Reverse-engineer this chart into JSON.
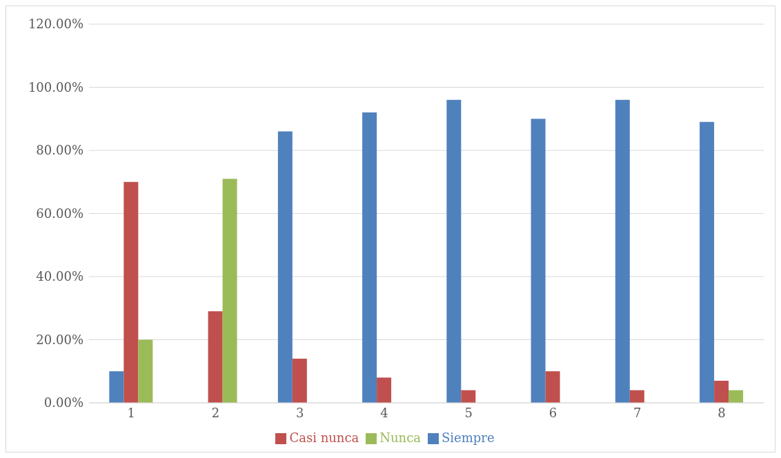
{
  "chart_data": {
    "type": "bar",
    "categories": [
      "1",
      "2",
      "3",
      "4",
      "5",
      "6",
      "7",
      "8"
    ],
    "series": [
      {
        "name": "Siempre",
        "color": "#4f81bd",
        "values": [
          10,
          0,
          86,
          92,
          96,
          90,
          96,
          89
        ]
      },
      {
        "name": "Casi nunca",
        "color": "#c0504d",
        "values": [
          70,
          29,
          14,
          8,
          4,
          10,
          4,
          7
        ]
      },
      {
        "name": "Nunca",
        "color": "#9bbb59",
        "values": [
          20,
          71,
          0,
          0,
          0,
          0,
          0,
          4
        ]
      }
    ],
    "ylim": [
      0,
      120
    ],
    "yticks": [
      {
        "value": 0,
        "label": "0.00%"
      },
      {
        "value": 20,
        "label": "20.00%"
      },
      {
        "value": 40,
        "label": "40.00%"
      },
      {
        "value": 60,
        "label": "60.00%"
      },
      {
        "value": 80,
        "label": "80.00%"
      },
      {
        "value": 100,
        "label": "100.00%"
      },
      {
        "value": 120,
        "label": "120.00%"
      }
    ],
    "grid": "y",
    "legend": "bottom"
  }
}
